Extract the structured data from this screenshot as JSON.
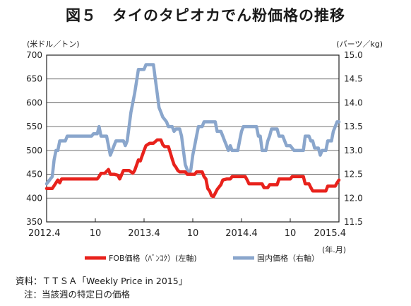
{
  "title": "図５　タイのタピオカでん粉価格の推移",
  "chart_data": {
    "type": "line",
    "left_unit": "(米ドル／トン)",
    "right_unit": "(バーツ／kg)",
    "x_unit": "(年.月)",
    "ylim_left": [
      350,
      700
    ],
    "ylim_right": [
      11.5,
      15.0
    ],
    "yticks_left": [
      "700",
      "650",
      "600",
      "550",
      "500",
      "450",
      "400",
      "350"
    ],
    "yticks_right": [
      "15.0",
      "14.5",
      "14.0",
      "13.5",
      "13.0",
      "12.5",
      "12.0",
      "11.5"
    ],
    "xticks": [
      {
        "label": "2012.4",
        "w": 0
      },
      {
        "label": "10",
        "w": 26
      },
      {
        "label": "2013.4",
        "w": 52
      },
      {
        "label": "10",
        "w": 78
      },
      {
        "label": "2014.4",
        "w": 104
      },
      {
        "label": "10",
        "w": 130
      },
      {
        "label": "2015.4",
        "w": 156
      }
    ],
    "x_domain_weeks": [
      0,
      156
    ],
    "grid": "horizontal",
    "series": [
      {
        "name": "FOB価格（ﾊﾞﾝｺｸ）(左軸)",
        "axis": "left",
        "color": "#e8221c",
        "points": [
          [
            0,
            420
          ],
          [
            3,
            420
          ],
          [
            5,
            432
          ],
          [
            6,
            438
          ],
          [
            7,
            432
          ],
          [
            8,
            440
          ],
          [
            27,
            440
          ],
          [
            28,
            445
          ],
          [
            29,
            452
          ],
          [
            31,
            452
          ],
          [
            33,
            460
          ],
          [
            34,
            450
          ],
          [
            36,
            450
          ],
          [
            38,
            448
          ],
          [
            39,
            440
          ],
          [
            41,
            458
          ],
          [
            44,
            458
          ],
          [
            46,
            452
          ],
          [
            47,
            458
          ],
          [
            49,
            480
          ],
          [
            50,
            478
          ],
          [
            52,
            500
          ],
          [
            53,
            510
          ],
          [
            55,
            515
          ],
          [
            57,
            515
          ],
          [
            59,
            522
          ],
          [
            61,
            522
          ],
          [
            62,
            512
          ],
          [
            63,
            508
          ],
          [
            65,
            508
          ],
          [
            66,
            495
          ],
          [
            67,
            482
          ],
          [
            68,
            470
          ],
          [
            69,
            465
          ],
          [
            70,
            458
          ],
          [
            71,
            455
          ],
          [
            74,
            455
          ],
          [
            75,
            450
          ],
          [
            79,
            450
          ],
          [
            80,
            455
          ],
          [
            83,
            455
          ],
          [
            84,
            445
          ],
          [
            85,
            440
          ],
          [
            86,
            420
          ],
          [
            87,
            415
          ],
          [
            88,
            405
          ],
          [
            89,
            403
          ],
          [
            90,
            410
          ],
          [
            91,
            418
          ],
          [
            93,
            428
          ],
          [
            94,
            438
          ],
          [
            96,
            440
          ],
          [
            98,
            440
          ],
          [
            99,
            445
          ],
          [
            106,
            445
          ],
          [
            107,
            438
          ],
          [
            108,
            430
          ],
          [
            115,
            430
          ],
          [
            116,
            422
          ],
          [
            118,
            422
          ],
          [
            119,
            428
          ],
          [
            123,
            428
          ],
          [
            124,
            440
          ],
          [
            130,
            440
          ],
          [
            131,
            445
          ],
          [
            137,
            445
          ],
          [
            138,
            430
          ],
          [
            140,
            430
          ],
          [
            141,
            422
          ],
          [
            142,
            415
          ],
          [
            143,
            415
          ],
          [
            149,
            415
          ],
          [
            150,
            425
          ],
          [
            154,
            425
          ],
          [
            155,
            432
          ],
          [
            156,
            438
          ]
        ]
      },
      {
        "name": "国内価格（右軸）",
        "axis": "right",
        "color": "#8aa6cc",
        "points": [
          [
            0,
            12.3
          ],
          [
            1,
            12.35
          ],
          [
            2,
            12.4
          ],
          [
            3,
            12.45
          ],
          [
            4,
            12.8
          ],
          [
            5,
            13.0
          ],
          [
            6,
            13.0
          ],
          [
            7,
            13.2
          ],
          [
            10,
            13.2
          ],
          [
            11,
            13.3
          ],
          [
            24,
            13.3
          ],
          [
            25,
            13.35
          ],
          [
            27,
            13.35
          ],
          [
            28,
            13.5
          ],
          [
            29,
            13.3
          ],
          [
            32,
            13.3
          ],
          [
            33,
            13.1
          ],
          [
            34,
            12.9
          ],
          [
            35,
            13.0
          ],
          [
            36,
            13.1
          ],
          [
            37,
            13.2
          ],
          [
            41,
            13.2
          ],
          [
            42,
            13.1
          ],
          [
            43,
            13.2
          ],
          [
            44,
            13.5
          ],
          [
            45,
            13.8
          ],
          [
            47,
            14.2
          ],
          [
            49,
            14.7
          ],
          [
            52,
            14.7
          ],
          [
            53,
            14.8
          ],
          [
            57,
            14.8
          ],
          [
            58,
            14.5
          ],
          [
            59,
            14.2
          ],
          [
            60,
            13.9
          ],
          [
            61,
            13.8
          ],
          [
            62,
            13.7
          ],
          [
            63,
            13.65
          ],
          [
            64,
            13.6
          ],
          [
            65,
            13.5
          ],
          [
            67,
            13.5
          ],
          [
            68,
            13.4
          ],
          [
            69,
            13.45
          ],
          [
            71,
            13.45
          ],
          [
            72,
            13.3
          ],
          [
            73,
            13.0
          ],
          [
            74,
            12.7
          ],
          [
            75,
            12.6
          ],
          [
            76,
            12.5
          ],
          [
            77,
            12.6
          ],
          [
            78,
            12.9
          ],
          [
            79,
            13.1
          ],
          [
            80,
            13.3
          ],
          [
            81,
            13.5
          ],
          [
            83,
            13.5
          ],
          [
            84,
            13.6
          ],
          [
            90,
            13.6
          ],
          [
            91,
            13.4
          ],
          [
            93,
            13.4
          ],
          [
            94,
            13.3
          ],
          [
            95,
            13.2
          ],
          [
            96,
            13.1
          ],
          [
            97,
            13.0
          ],
          [
            98,
            13.1
          ],
          [
            99,
            13.0
          ],
          [
            102,
            13.0
          ],
          [
            103,
            13.2
          ],
          [
            104,
            13.4
          ],
          [
            105,
            13.5
          ],
          [
            111,
            13.5
          ],
          [
            112,
            13.5
          ],
          [
            113,
            13.3
          ],
          [
            114,
            13.3
          ],
          [
            115,
            13.0
          ],
          [
            117,
            13.0
          ],
          [
            118,
            13.2
          ],
          [
            119,
            13.3
          ],
          [
            120,
            13.45
          ],
          [
            123,
            13.45
          ],
          [
            124,
            13.3
          ],
          [
            126,
            13.3
          ],
          [
            128,
            13.1
          ],
          [
            130,
            13.1
          ],
          [
            132,
            13.0
          ],
          [
            137,
            13.0
          ],
          [
            138,
            13.3
          ],
          [
            140,
            13.3
          ],
          [
            141,
            13.2
          ],
          [
            142,
            13.2
          ],
          [
            143,
            13.05
          ],
          [
            145,
            13.05
          ],
          [
            146,
            12.9
          ],
          [
            147,
            13.0
          ],
          [
            149,
            13.0
          ],
          [
            150,
            13.2
          ],
          [
            152,
            13.2
          ],
          [
            153,
            13.4
          ],
          [
            155,
            13.6
          ],
          [
            156,
            13.6
          ]
        ]
      }
    ]
  },
  "notes": {
    "source": "資料：ＴＴＳＡ「Weekly Price in 2015」",
    "note": "注：当該週の特定日の価格"
  }
}
